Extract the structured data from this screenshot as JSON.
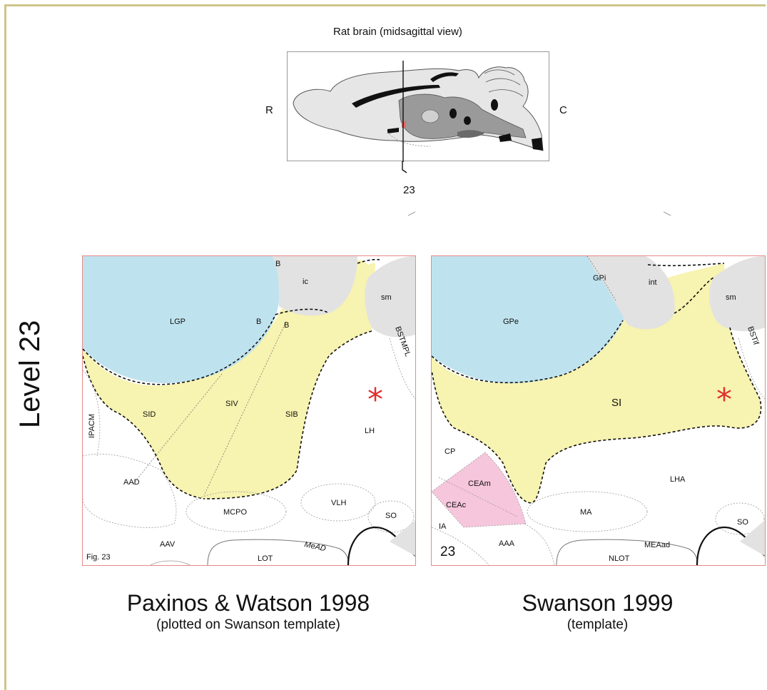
{
  "brain": {
    "title": "Rat brain (midsagittal view)",
    "rostral_label": "R",
    "caudal_label": "C",
    "level_number": "23"
  },
  "level_label": "Level 23",
  "left_panel": {
    "labels": {
      "lgp": "LGP",
      "b1": "B",
      "b2": "B",
      "b3": "B",
      "ic": "ic",
      "sm": "sm",
      "bstmpl": "BSTMPL",
      "sid": "SID",
      "siv": "SIV",
      "sib": "SIB",
      "lh": "LH",
      "ipacm": "IPACM",
      "aad": "AAD",
      "mcpo": "MCPO",
      "vlh": "VLH",
      "so": "SO",
      "aav": "AAV",
      "lot": "LOT",
      "mead": "MeAD",
      "fig": "Fig. 23"
    },
    "asterisk": "*",
    "colors": {
      "globus": "#bfe3ee",
      "substantia": "#f7f3b0",
      "gray": "#e2e2e2"
    }
  },
  "right_panel": {
    "labels": {
      "gpe": "GPe",
      "gpi": "GPi",
      "int": "int",
      "sm": "sm",
      "bstif": "BSTif",
      "si": "SI",
      "cp": "CP",
      "ceam": "CEAm",
      "ceac": "CEAc",
      "ia": "IA",
      "lha": "LHA",
      "ma": "MA",
      "so": "SO",
      "aaa": "AAA",
      "nlot": "NLOT",
      "meaad": "MEAad",
      "level": "23"
    },
    "asterisk": "*",
    "colors": {
      "globus": "#bfe3ee",
      "substantia": "#f7f3b0",
      "amygdala": "#f6c6dc",
      "gray": "#e2e2e2"
    }
  },
  "captions": {
    "left_title": "Paxinos & Watson 1998",
    "left_sub": "(plotted on Swanson template)",
    "right_title": "Swanson 1999",
    "right_sub": "(template)"
  }
}
